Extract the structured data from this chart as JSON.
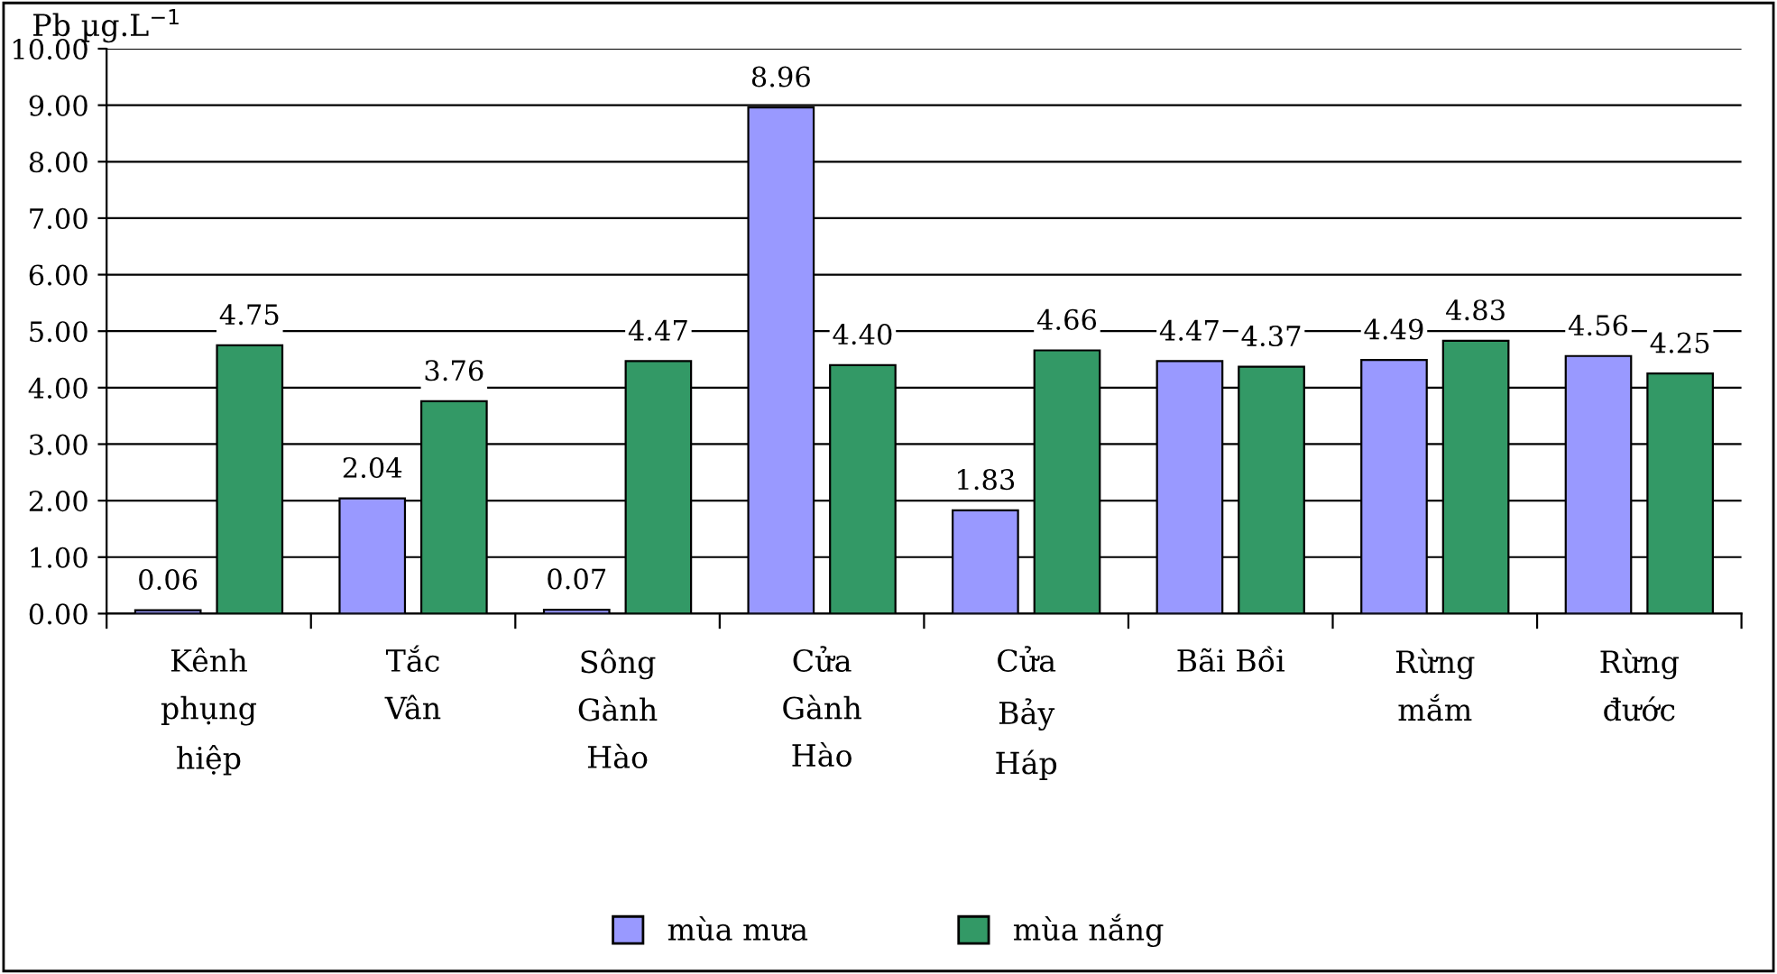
{
  "chart_data": {
    "type": "bar",
    "ylabel": "Pb µg.L$^{−1}$",
    "categories": [
      "Kênh\nphụng\nhiệp",
      "Tắc\nVân",
      "Sông\nGành\nHào",
      "Cửa\nGành\nHào",
      "Cửa\nBảy\nHáp",
      "Bãi Bồi",
      "Rừng\nmắm",
      "Rừng\nđước"
    ],
    "series": [
      {
        "name": "mùa mưa",
        "color": "#9999ff",
        "values": [
          0.06,
          2.04,
          0.07,
          8.96,
          1.83,
          4.47,
          4.49,
          4.56
        ],
        "value_labels": [
          "0.06",
          "2.04",
          "0.07",
          "8.96",
          "1.83",
          "4.47",
          "4.49",
          "4.56"
        ]
      },
      {
        "name": "mùa nắng",
        "color": "#339966",
        "values": [
          4.75,
          3.76,
          4.47,
          4.4,
          4.66,
          4.37,
          4.83,
          4.25
        ],
        "value_labels": [
          "4.75",
          "3.76",
          "4.47",
          "4.40",
          "4.66",
          "4.37",
          "4.83",
          "4.25"
        ]
      }
    ],
    "ylim": [
      0,
      10
    ],
    "yticks": [
      {
        "value": 0,
        "label": "0.00"
      },
      {
        "value": 1,
        "label": "1.00"
      },
      {
        "value": 2,
        "label": "2.00"
      },
      {
        "value": 3,
        "label": "3.00"
      },
      {
        "value": 4,
        "label": "4.00"
      },
      {
        "value": 5,
        "label": "5.00"
      },
      {
        "value": 6,
        "label": "6.00"
      },
      {
        "value": 7,
        "label": "7.00"
      },
      {
        "value": 8,
        "label": "8.00"
      },
      {
        "value": 9,
        "label": "9.00"
      },
      {
        "value": 10,
        "label": "10.00"
      }
    ],
    "grid": "y",
    "legend": "bottom"
  }
}
